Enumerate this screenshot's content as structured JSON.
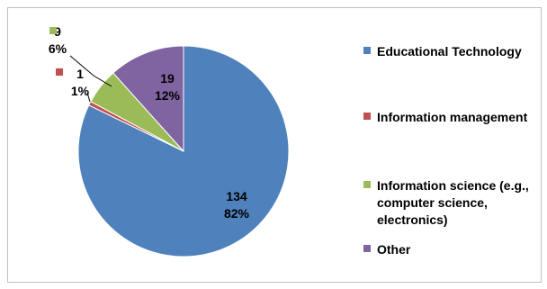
{
  "chart_data": {
    "type": "pie",
    "title": "",
    "slices": [
      {
        "label": "Educational Technology",
        "value": 134,
        "percent": "82%",
        "color": "#4F81BD"
      },
      {
        "label": "Information management",
        "value": 1,
        "percent": "1%",
        "color": "#C0504D"
      },
      {
        "label": "Information science (e.g., computer science, electronics)",
        "value": 9,
        "percent": "6%",
        "color": "#9BBB59"
      },
      {
        "label": "Other",
        "value": 19,
        "percent": "12%",
        "color": "#8064A2"
      }
    ],
    "legend": {
      "placement": "right",
      "lines": [
        [
          "Educational Technology"
        ],
        [
          "Information management"
        ],
        [
          "Information science (e.g.,",
          "computer science,",
          "electronics)"
        ],
        [
          "Other"
        ]
      ]
    },
    "data_labels": [
      {
        "value": "134",
        "percent": "82%"
      },
      {
        "value": "1",
        "percent": "1%"
      },
      {
        "value": "9",
        "percent": "6%"
      },
      {
        "value": "19",
        "percent": "12%"
      }
    ]
  }
}
